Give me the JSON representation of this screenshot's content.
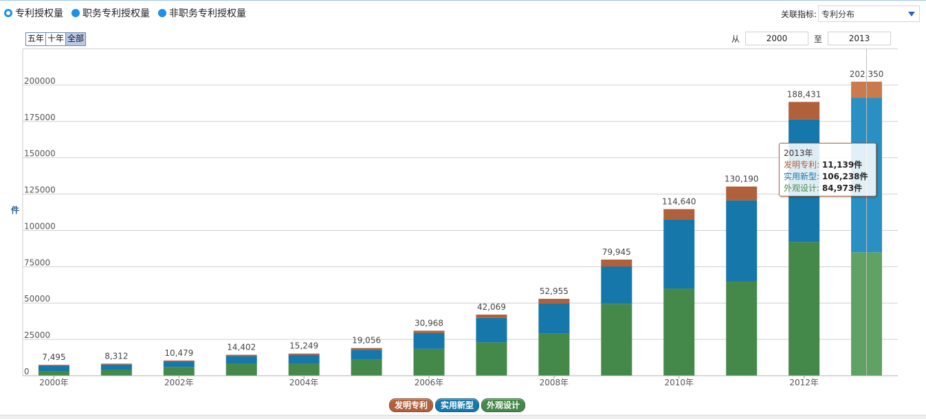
{
  "radios": [
    {
      "label": "专利授权量",
      "selected": true
    },
    {
      "label": "职务专利授权量",
      "selected": false
    },
    {
      "label": "非职务专利授权量",
      "selected": false
    }
  ],
  "indicator": {
    "label": "关联指标:",
    "value": "专利分布"
  },
  "range_buttons": [
    {
      "label": "五年",
      "active": false
    },
    {
      "label": "十年",
      "active": false
    },
    {
      "label": "全部",
      "active": true
    }
  ],
  "date_range": {
    "from_label": "从",
    "from": "2000",
    "to_label": "至",
    "to": "2013"
  },
  "colors": {
    "invention": "#b0603a",
    "utility": "#1677aa",
    "design": "#45894a",
    "invention_hl": "#c97b4e",
    "utility_hl": "#2a90c4",
    "design_hl": "#5fa263"
  },
  "chart_data": {
    "type": "bar",
    "stacked": true,
    "ylabel": "件",
    "ylim": [
      0,
      225000
    ],
    "yticks": [
      0,
      25000,
      50000,
      75000,
      100000,
      125000,
      150000,
      175000,
      200000
    ],
    "xtick_labels": [
      "2000年",
      "2002年",
      "2004年",
      "2006年",
      "2008年",
      "2010年",
      "2012年"
    ],
    "categories": [
      "2000",
      "2001",
      "2002",
      "2003",
      "2004",
      "2005",
      "2006",
      "2007",
      "2008",
      "2009",
      "2010",
      "2011",
      "2012",
      "2013"
    ],
    "totals": [
      "7,495",
      "8,312",
      "10,479",
      "14,402",
      "15,249",
      "19,056",
      "30,968",
      "42,069",
      "52,955",
      "79,945",
      "114,640",
      "130,190",
      "188,431",
      "202,350"
    ],
    "series": [
      {
        "name": "外观设计",
        "key": "design",
        "values": [
          3300,
          4000,
          6000,
          8500,
          8500,
          11000,
          18500,
          23000,
          29000,
          49500,
          60000,
          65000,
          92000,
          84973
        ]
      },
      {
        "name": "实用新型",
        "key": "utility",
        "values": [
          3595,
          3712,
          3879,
          5002,
          5849,
          6856,
          10968,
          16769,
          20655,
          25645,
          47640,
          55690,
          84431,
          106238
        ]
      },
      {
        "name": "发明专利",
        "key": "invention",
        "values": [
          600,
          600,
          600,
          900,
          900,
          1200,
          1500,
          2300,
          3300,
          4800,
          7000,
          9500,
          12000,
          11139
        ]
      }
    ],
    "highlight_index": 13,
    "legend_position": "bottom-center"
  },
  "legend": [
    {
      "label": "发明专利",
      "key": "invention"
    },
    {
      "label": "实用新型",
      "key": "utility"
    },
    {
      "label": "外观设计",
      "key": "design"
    }
  ],
  "tooltip": {
    "year": "2013年",
    "rows": [
      {
        "label": "发明专利:",
        "value": "11,139件",
        "key": "invention"
      },
      {
        "label": "实用新型:",
        "value": "106,238件",
        "key": "utility"
      },
      {
        "label": "外观设计:",
        "value": "84,973件",
        "key": "design"
      }
    ]
  }
}
